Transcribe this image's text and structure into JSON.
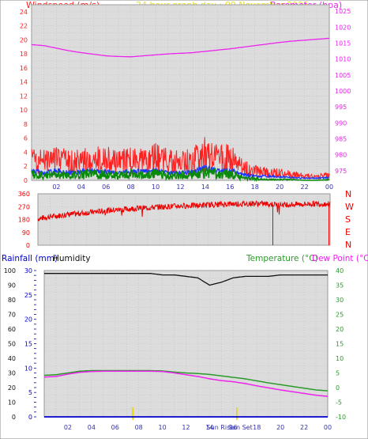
{
  "header": {
    "left_title": "Windspeed (m/s)",
    "center_title": "24 hour graph day : 09 November 2025",
    "right_title": "Barometer (hpa)"
  },
  "colors": {
    "windspeed": "#ff2020",
    "gust_blue": "#1a33ff",
    "wind_green": "#0a8a0a",
    "barometer": "#ee22ee",
    "title_yellow": "#e8e020",
    "direction": "#ee0000",
    "humidity": "#111111",
    "rain": "#0000cc",
    "temperature": "#2a9a2a",
    "dewpoint": "#ee22ee",
    "plot_bg": "#dcdcdc",
    "grid": "#bfbfbf"
  },
  "chart_data": [
    {
      "type": "line",
      "title": "24 hour graph day : 09 November 2025",
      "xticks": [
        "02",
        "04",
        "06",
        "08",
        "10",
        "12",
        "14",
        "16",
        "18",
        "20",
        "22",
        "00"
      ],
      "ylabel_left": "Windspeed (m/s)",
      "ylim_left": [
        0,
        25
      ],
      "yticks_left": [
        "0",
        "2",
        "4",
        "6",
        "8",
        "10",
        "12",
        "14",
        "16",
        "18",
        "20",
        "22",
        "24"
      ],
      "ylabel_right": "Barometer (hpa)",
      "ylim_right": [
        972,
        1027
      ],
      "yticks_right": [
        "975",
        "980",
        "985",
        "990",
        "995",
        "1000",
        "1005",
        "1010",
        "1015",
        "1020",
        "1025"
      ],
      "x": [
        0,
        1,
        2,
        3,
        4,
        5,
        6,
        7,
        8,
        9,
        10,
        11,
        12,
        13,
        14,
        15,
        16,
        17,
        18,
        19,
        20,
        21,
        22,
        23,
        24
      ],
      "series": [
        {
          "axis": "right",
          "values": [
            1014.5,
            1014.2,
            1013.4,
            1012.6,
            1012.0,
            1011.5,
            1011.0,
            1010.8,
            1010.7,
            1011.0,
            1011.3,
            1011.6,
            1011.8,
            1012.0,
            1012.4,
            1012.8,
            1013.2,
            1013.7,
            1014.2,
            1014.7,
            1015.2,
            1015.6,
            1015.9,
            1016.2,
            1016.5
          ]
        },
        {
          "axis": "left",
          "values": [
            3.5,
            3.2,
            3.8,
            3.0,
            3.3,
            3.4,
            3.6,
            3.1,
            3.5,
            3.4,
            3.8,
            3.2,
            3.0,
            3.4,
            4.5,
            3.6,
            3.8,
            2.2,
            1.6,
            1.4,
            1.2,
            1.0,
            0.7,
            0.6,
            1.0
          ]
        },
        {
          "axis": "left",
          "values": [
            1.3,
            1.1,
            1.4,
            1.1,
            1.2,
            1.3,
            1.2,
            1.0,
            1.3,
            1.2,
            1.4,
            1.0,
            1.1,
            1.2,
            1.7,
            1.3,
            1.4,
            0.8,
            0.6,
            0.6,
            0.5,
            0.4,
            0.3,
            0.3,
            0.4
          ]
        },
        {
          "axis": "left",
          "values": [
            0.8,
            0.7,
            0.9,
            0.7,
            0.8,
            0.9,
            0.8,
            0.7,
            0.9,
            0.8,
            0.9,
            0.7,
            0.7,
            0.8,
            1.1,
            0.9,
            0.9,
            0.4,
            0.2,
            0.1,
            0.1,
            0.1,
            0.0,
            0.0,
            0.1
          ]
        }
      ]
    },
    {
      "type": "scatter",
      "xticks": [
        "02",
        "04",
        "06",
        "08",
        "10",
        "12",
        "14",
        "16",
        "18",
        "20",
        "22",
        "00"
      ],
      "ylim": [
        0,
        360
      ],
      "yticks": [
        "360",
        "270",
        "180",
        "90",
        "0"
      ],
      "compass": [
        "N",
        "W",
        "S",
        "E",
        "N"
      ],
      "x": [
        0,
        1,
        2,
        3,
        4,
        5,
        6,
        7,
        8,
        9,
        10,
        11,
        12,
        13,
        14,
        15,
        16,
        17,
        18,
        19,
        20,
        21,
        22,
        23,
        24
      ],
      "values": [
        185,
        200,
        210,
        218,
        228,
        236,
        245,
        250,
        258,
        262,
        268,
        272,
        276,
        278,
        282,
        286,
        290,
        290,
        292,
        288,
        284,
        285,
        288,
        290,
        288
      ]
    },
    {
      "type": "line",
      "xticks": [
        "02",
        "04",
        "06",
        "08",
        "10",
        "12",
        "14",
        "16",
        "18",
        "20",
        "22",
        "00"
      ],
      "annotations": [
        "Sun Rise",
        "Sun Set"
      ],
      "ylabel_left_1": "Rainfall (mm)",
      "ylim_rain": [
        0,
        30
      ],
      "yticks_rain": [
        "0",
        "5",
        "10",
        "15",
        "20",
        "25",
        "30"
      ],
      "ylabel_left_2": "Humidity",
      "ylim_humidity": [
        0,
        100
      ],
      "yticks_humidity": [
        "0",
        "10",
        "20",
        "30",
        "40",
        "50",
        "60",
        "70",
        "80",
        "90",
        "100"
      ],
      "ylabel_right_1": "Temperature (°C)",
      "ylabel_right_2": "Dew Point (°C)",
      "ylim_temp": [
        -10,
        40
      ],
      "yticks_temp": [
        "-10",
        "-5",
        "0",
        "5",
        "10",
        "15",
        "20",
        "25",
        "30",
        "35",
        "40"
      ],
      "x": [
        0,
        1,
        2,
        3,
        4,
        5,
        6,
        7,
        8,
        9,
        10,
        11,
        12,
        13,
        14,
        15,
        16,
        17,
        18,
        19,
        20,
        21,
        22,
        23,
        24
      ],
      "series": [
        {
          "name": "Humidity",
          "values": [
            98,
            98,
            98,
            98,
            98,
            98,
            98,
            98,
            98,
            98,
            97,
            97,
            96,
            95,
            90,
            92,
            95,
            96,
            96,
            96,
            97,
            97,
            97,
            97,
            97
          ]
        },
        {
          "name": "Temperature (°C)",
          "values": [
            4.2,
            4.4,
            5.0,
            5.6,
            5.8,
            5.8,
            5.8,
            5.8,
            5.8,
            5.8,
            5.7,
            5.3,
            5.0,
            4.8,
            4.5,
            4.0,
            3.5,
            3.0,
            2.3,
            1.6,
            1.0,
            0.4,
            -0.2,
            -0.8,
            -1.1
          ]
        },
        {
          "name": "Dew Point (°C)",
          "values": [
            3.6,
            3.8,
            4.6,
            5.2,
            5.5,
            5.6,
            5.6,
            5.6,
            5.6,
            5.6,
            5.5,
            5.0,
            4.4,
            3.8,
            3.0,
            2.4,
            2.0,
            1.4,
            0.6,
            -0.1,
            -0.8,
            -1.4,
            -2.0,
            -2.6,
            -3.0
          ]
        },
        {
          "name": "Rainfall (mm)",
          "values": [
            0,
            0,
            0,
            0,
            0,
            0,
            0,
            0,
            0,
            0,
            0,
            0,
            0,
            0,
            0,
            0,
            0,
            0,
            0,
            0,
            0,
            0,
            0,
            0,
            0
          ]
        }
      ]
    }
  ]
}
